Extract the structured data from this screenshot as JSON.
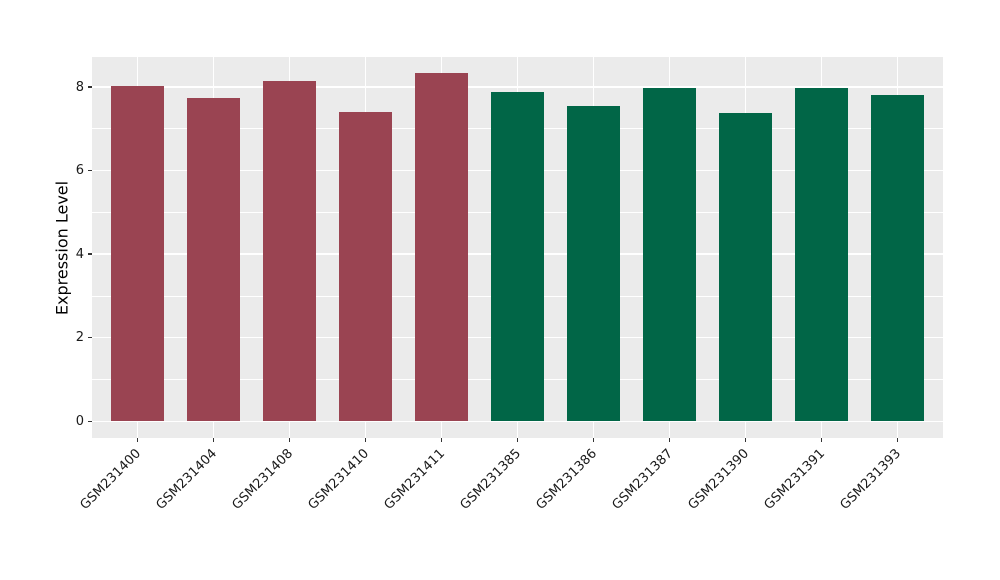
{
  "figure": {
    "background": "#ffffff"
  },
  "chart_data": {
    "type": "bar",
    "title": "",
    "xlabel": "",
    "ylabel": "Expression Level",
    "categories": [
      "GSM231400",
      "GSM231404",
      "GSM231408",
      "GSM231410",
      "GSM231411",
      "GSM231385",
      "GSM231386",
      "GSM231387",
      "GSM231390",
      "GSM231391",
      "GSM231393"
    ],
    "values": [
      8.02,
      7.74,
      8.15,
      7.41,
      8.33,
      7.88,
      7.55,
      7.97,
      7.37,
      7.97,
      7.81
    ],
    "groups": [
      "group1",
      "group1",
      "group1",
      "group1",
      "group1",
      "group2",
      "group2",
      "group2",
      "group2",
      "group2",
      "group2"
    ],
    "group_colors": {
      "group1": "#9A4452",
      "group2": "#016647"
    },
    "y_ticks": [
      0,
      2,
      4,
      6,
      8
    ],
    "y_tick_labels": [
      "0",
      "2",
      "4",
      "6",
      "8"
    ],
    "y_minor_ticks": [
      1,
      3,
      5,
      7
    ],
    "ylim": [
      -0.4,
      8.72
    ],
    "bar_width_fraction": 0.7,
    "grid": "on",
    "legend": "none",
    "panel_bg": "#EBEBEB",
    "grid_color": "#FFFFFF",
    "tick_color": "#333333",
    "label_color": "#1A1A1A"
  }
}
